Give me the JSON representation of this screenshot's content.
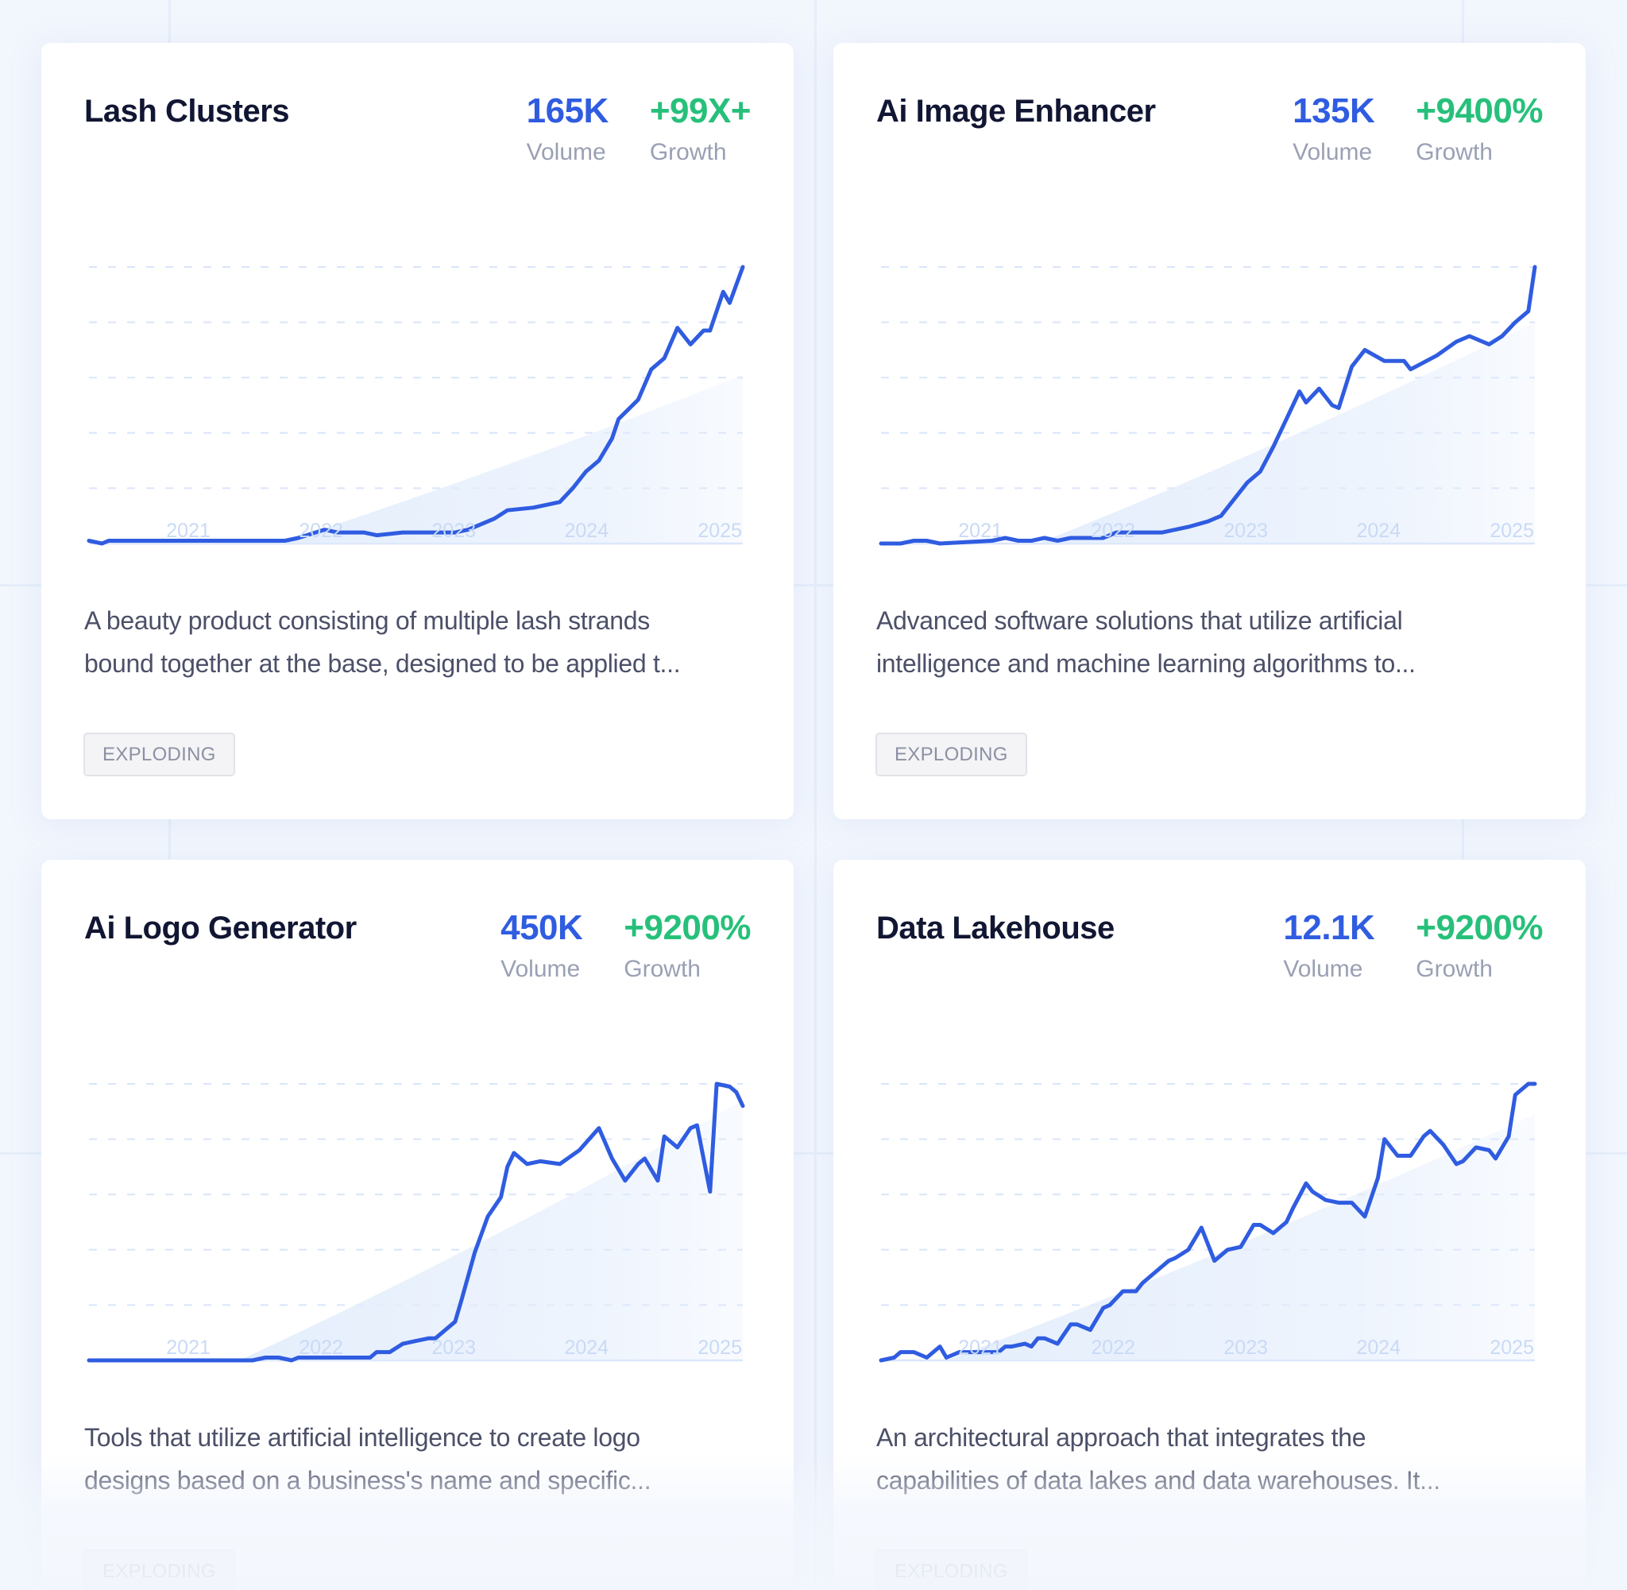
{
  "colors": {
    "volume": "#2f5ce0",
    "growth": "#27c07a",
    "line": "#2f5ce0",
    "area": "#e3edfc",
    "grid": "#d9e5fa",
    "title": "#111633",
    "label": "#9aa0b4",
    "years": "#c9daf6"
  },
  "labels": {
    "volume": "Volume",
    "growth": "Growth"
  },
  "cards": [
    {
      "title": "Lash Clusters",
      "volume": "165K",
      "growth": "+99X+",
      "description_line1": "A beauty product consisting of multiple lash strands",
      "description_line2": "bound together at the base, designed to be applied t...",
      "tag": "EXPLODING"
    },
    {
      "title": "Ai Image Enhancer",
      "volume": "135K",
      "growth": "+9400%",
      "description_line1": "Advanced software solutions that utilize artificial",
      "description_line2": "intelligence and machine learning algorithms to...",
      "tag": "EXPLODING"
    },
    {
      "title": "Ai Logo Generator",
      "volume": "450K",
      "growth": "+9200%",
      "description_line1": "Tools that utilize artificial intelligence to create logo",
      "description_line2": "designs based on a business's name and specific...",
      "tag": "EXPLODING"
    },
    {
      "title": "Data Lakehouse",
      "volume": "12.1K",
      "growth": "+9200%",
      "description_line1": "An architectural approach that integrates the",
      "description_line2": "capabilities of data lakes and data warehouses. It...",
      "tag": "EXPLODING"
    }
  ],
  "chart_data": [
    {
      "type": "line",
      "title": "Lash Clusters",
      "x_ticks": [
        "2021",
        "2022",
        "2023",
        "2024",
        "2025"
      ],
      "xlabel": "",
      "ylabel": "",
      "ylim": [
        0,
        100
      ],
      "grid": true,
      "y_gridlines": 5,
      "trend_area": {
        "start_x": 0.29,
        "end_value": 61
      },
      "series": [
        {
          "name": "Lash Clusters",
          "x": [
            0,
            0.02,
            0.03,
            0.1,
            0.2,
            0.3,
            0.32,
            0.36,
            0.38,
            0.42,
            0.44,
            0.48,
            0.52,
            0.54,
            0.56,
            0.58,
            0.62,
            0.64,
            0.68,
            0.7,
            0.72,
            0.74,
            0.76,
            0.78,
            0.8,
            0.81,
            0.84,
            0.86,
            0.88,
            0.9,
            0.92,
            0.94,
            0.95,
            0.97,
            0.98,
            1.0
          ],
          "values": [
            1,
            0,
            1,
            1,
            1,
            1,
            2,
            5,
            4,
            4,
            3,
            4,
            4,
            4,
            4,
            5,
            9,
            12,
            13,
            14,
            15,
            20,
            26,
            30,
            38,
            45,
            52,
            63,
            67,
            78,
            72,
            77,
            77,
            91,
            87,
            100
          ]
        }
      ]
    },
    {
      "type": "line",
      "title": "Ai Image Enhancer",
      "x_ticks": [
        "2021",
        "2022",
        "2023",
        "2024",
        "2025"
      ],
      "ylim": [
        0,
        100
      ],
      "grid": true,
      "y_gridlines": 5,
      "trend_area": {
        "start_x": 0.24,
        "end_value": 80
      },
      "series": [
        {
          "name": "Ai Image Enhancer",
          "x": [
            0,
            0.03,
            0.05,
            0.07,
            0.09,
            0.17,
            0.19,
            0.21,
            0.23,
            0.25,
            0.27,
            0.29,
            0.34,
            0.36,
            0.43,
            0.47,
            0.5,
            0.52,
            0.54,
            0.56,
            0.58,
            0.6,
            0.62,
            0.64,
            0.65,
            0.67,
            0.69,
            0.7,
            0.72,
            0.74,
            0.77,
            0.8,
            0.81,
            0.85,
            0.88,
            0.9,
            0.93,
            0.95,
            0.97,
            0.99,
            1.0
          ],
          "values": [
            0,
            0,
            1,
            1,
            0,
            1,
            2,
            1,
            1,
            2,
            1,
            2,
            2,
            4,
            4,
            6,
            8,
            10,
            16,
            22,
            26,
            35,
            45,
            55,
            51,
            56,
            50,
            49,
            64,
            70,
            66,
            66,
            63,
            68,
            73,
            75,
            72,
            75,
            80,
            84,
            100
          ]
        }
      ]
    },
    {
      "type": "line",
      "title": "Ai Logo Generator",
      "x_ticks": [
        "2021",
        "2022",
        "2023",
        "2024",
        "2025"
      ],
      "ylim": [
        0,
        100
      ],
      "grid": true,
      "y_gridlines": 5,
      "trend_area": {
        "start_x": 0.23,
        "end_value": 94
      },
      "series": [
        {
          "name": "Ai Logo Generator",
          "x": [
            0,
            0.25,
            0.27,
            0.29,
            0.31,
            0.32,
            0.43,
            0.44,
            0.46,
            0.48,
            0.5,
            0.52,
            0.53,
            0.56,
            0.57,
            0.59,
            0.61,
            0.63,
            0.64,
            0.65,
            0.67,
            0.69,
            0.72,
            0.75,
            0.78,
            0.8,
            0.82,
            0.84,
            0.85,
            0.87,
            0.88,
            0.9,
            0.92,
            0.93,
            0.95,
            0.96,
            0.98,
            0.99,
            1.0
          ],
          "values": [
            0,
            0,
            1,
            1,
            0,
            1,
            1,
            3,
            3,
            6,
            7,
            8,
            8,
            14,
            22,
            39,
            52,
            59,
            70,
            75,
            71,
            72,
            71,
            76,
            84,
            73,
            65,
            71,
            73,
            65,
            81,
            77,
            84,
            85,
            61,
            100,
            99,
            97,
            92
          ]
        }
      ]
    },
    {
      "type": "line",
      "title": "Data Lakehouse",
      "x_ticks": [
        "2021",
        "2022",
        "2023",
        "2024",
        "2025"
      ],
      "ylim": [
        0,
        100
      ],
      "grid": true,
      "y_gridlines": 5,
      "trend_area": {
        "start_x": 0.1,
        "end_value": 89
      },
      "series": [
        {
          "name": "Data Lakehouse",
          "x": [
            0,
            0.02,
            0.03,
            0.05,
            0.07,
            0.09,
            0.1,
            0.12,
            0.14,
            0.16,
            0.18,
            0.19,
            0.2,
            0.22,
            0.23,
            0.24,
            0.25,
            0.27,
            0.29,
            0.3,
            0.32,
            0.34,
            0.35,
            0.37,
            0.39,
            0.4,
            0.42,
            0.44,
            0.45,
            0.47,
            0.49,
            0.51,
            0.53,
            0.55,
            0.57,
            0.58,
            0.6,
            0.62,
            0.63,
            0.65,
            0.66,
            0.68,
            0.7,
            0.72,
            0.74,
            0.76,
            0.77,
            0.79,
            0.81,
            0.83,
            0.84,
            0.86,
            0.88,
            0.89,
            0.91,
            0.93,
            0.94,
            0.96,
            0.97,
            0.99,
            1.0
          ],
          "values": [
            0,
            1,
            3,
            3,
            1,
            5,
            1,
            3,
            3,
            3,
            3,
            5,
            5,
            6,
            5,
            8,
            8,
            6,
            13,
            13,
            11,
            19,
            20,
            25,
            25,
            28,
            32,
            36,
            37,
            40,
            48,
            36,
            40,
            41,
            49,
            49,
            46,
            50,
            55,
            64,
            61,
            58,
            57,
            57,
            52,
            66,
            80,
            74,
            74,
            81,
            83,
            78,
            71,
            72,
            77,
            76,
            73,
            81,
            96,
            100,
            100
          ]
        }
      ]
    }
  ]
}
